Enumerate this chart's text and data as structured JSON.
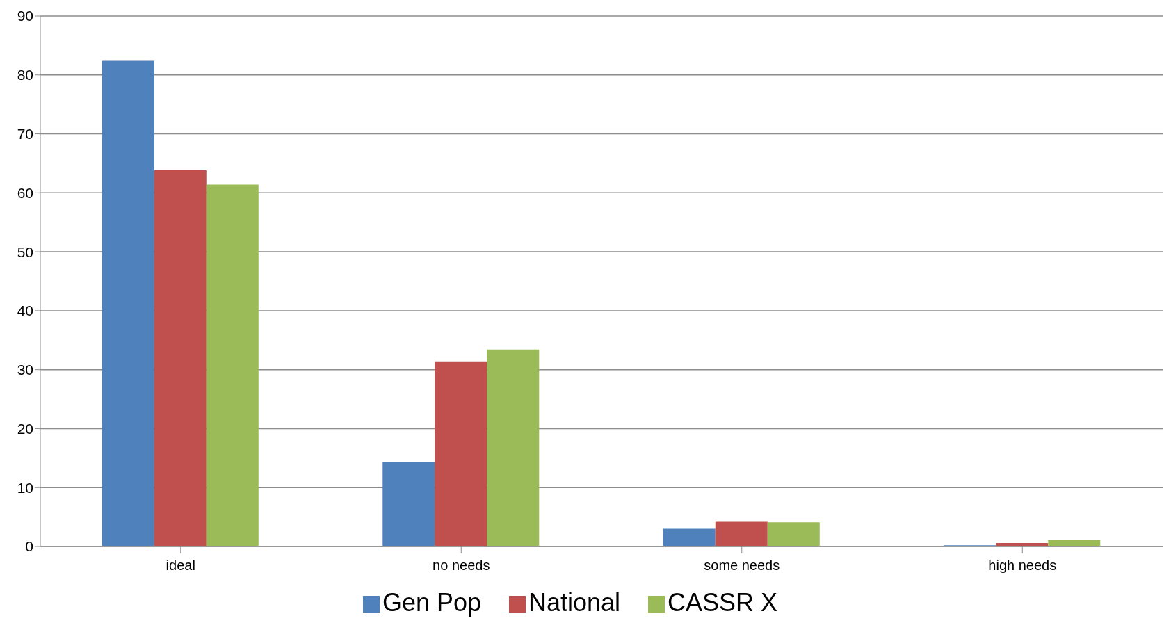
{
  "chart_data": {
    "type": "bar",
    "categories": [
      "ideal",
      "no needs",
      "some needs",
      "high needs"
    ],
    "series": [
      {
        "name": "Gen Pop",
        "color": "#4f81bd",
        "values": [
          82.4,
          14.4,
          3.0,
          0.2
        ]
      },
      {
        "name": "National",
        "color": "#c0504d",
        "values": [
          63.8,
          31.4,
          4.2,
          0.6
        ]
      },
      {
        "name": "CASSR X",
        "color": "#9bbb59",
        "values": [
          61.4,
          33.4,
          4.1,
          1.1
        ]
      }
    ],
    "ylim": [
      0,
      90
    ],
    "yticks": [
      0,
      10,
      20,
      30,
      40,
      50,
      60,
      70,
      80,
      90
    ],
    "grid": "y",
    "legend": "bottom"
  }
}
